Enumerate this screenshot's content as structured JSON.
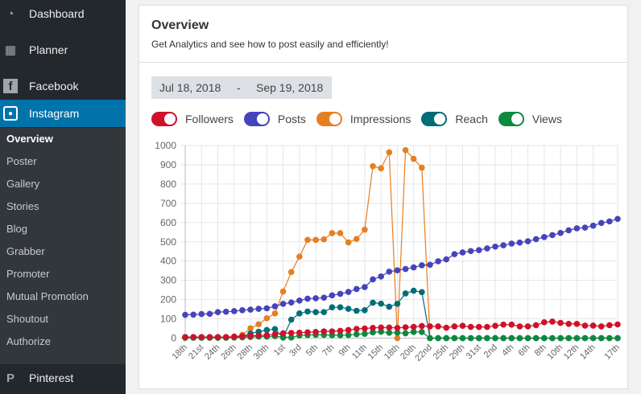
{
  "sidebar": {
    "items": [
      {
        "label": "Dashboard",
        "icon": "dashboard-icon"
      },
      {
        "label": "Planner",
        "icon": "calendar-icon"
      },
      {
        "label": "Facebook",
        "icon": "facebook-icon"
      },
      {
        "label": "Instagram",
        "icon": "instagram-icon"
      },
      {
        "label": "Pinterest",
        "icon": "pinterest-icon"
      }
    ],
    "submenu": [
      "Overview",
      "Poster",
      "Gallery",
      "Stories",
      "Blog",
      "Grabber",
      "Promoter",
      "Mutual Promotion",
      "Shoutout",
      "Authorize"
    ],
    "active_item": "Instagram",
    "active_sub": "Overview",
    "colors": {
      "bg": "#23282d",
      "active": "#0073aa"
    }
  },
  "card": {
    "title": "Overview",
    "subtitle": "Get Analytics and see how to post easily and efficiently!",
    "date_from": "Jul 18, 2018",
    "date_sep": "-",
    "date_to": "Sep 19, 2018"
  },
  "legend": [
    {
      "label": "Followers",
      "color": "#d0102a",
      "on": true
    },
    {
      "label": "Posts",
      "color": "#4444bb",
      "on": true
    },
    {
      "label": "Impressions",
      "color": "#e67e22",
      "on": true
    },
    {
      "label": "Reach",
      "color": "#006d77",
      "on": true
    },
    {
      "label": "Views",
      "color": "#0b8a3f",
      "on": true
    }
  ],
  "chart_data": {
    "type": "line",
    "ylim": [
      0,
      1000
    ],
    "yticks": [
      0,
      100,
      200,
      300,
      400,
      500,
      600,
      700,
      800,
      900,
      1000
    ],
    "x_tick_labels": [
      "18th",
      "21st",
      "24th",
      "26th",
      "28th",
      "30th",
      "1st",
      "3rd",
      "5th",
      "7th",
      "9th",
      "11th",
      "15th",
      "18th",
      "20th",
      "22nd",
      "25th",
      "29th",
      "31st",
      "2nd",
      "4th",
      "6th",
      "8th",
      "10th",
      "12th",
      "14th",
      "17th"
    ],
    "grid": true,
    "series": [
      {
        "name": "Impressions",
        "color": "#e67e22",
        "values": [
          5,
          5,
          5,
          5,
          5,
          5,
          5,
          17,
          51,
          72,
          103,
          128,
          242,
          343,
          423,
          510,
          510,
          513,
          545,
          545,
          497,
          515,
          563,
          893,
          882,
          965,
          0,
          976,
          931,
          885,
          0,
          0,
          0,
          0,
          0,
          0,
          0,
          0,
          0,
          0,
          0,
          0,
          0,
          0,
          0,
          0,
          0,
          0,
          0,
          0,
          0,
          0,
          0,
          0
        ]
      },
      {
        "name": "Reach",
        "color": "#006d77",
        "values": [
          5,
          5,
          5,
          5,
          5,
          5,
          5,
          8,
          24,
          33,
          42,
          47,
          3,
          96,
          128,
          138,
          135,
          135,
          160,
          160,
          152,
          142,
          145,
          184,
          179,
          163,
          178,
          232,
          246,
          239,
          0,
          0,
          0,
          0,
          0,
          0,
          0,
          0,
          0,
          0,
          0,
          0,
          0,
          0,
          0,
          0,
          0,
          0,
          0,
          0,
          0,
          0,
          0,
          0
        ]
      },
      {
        "name": "Views",
        "color": "#0b8a3f",
        "values": [
          2,
          2,
          2,
          2,
          2,
          2,
          3,
          4,
          6,
          8,
          8,
          10,
          6,
          3,
          14,
          16,
          17,
          17,
          15,
          15,
          16,
          20,
          22,
          30,
          33,
          28,
          28,
          25,
          32,
          32,
          0,
          0,
          0,
          0,
          0,
          0,
          0,
          0,
          0,
          0,
          0,
          0,
          0,
          0,
          0,
          0,
          0,
          0,
          0,
          0,
          0,
          0,
          0,
          0
        ]
      },
      {
        "name": "Posts",
        "color": "#4444bb",
        "values": [
          121,
          122,
          125,
          126,
          135,
          137,
          140,
          145,
          148,
          152,
          155,
          165,
          178,
          185,
          195,
          205,
          207,
          210,
          222,
          230,
          240,
          255,
          265,
          305,
          320,
          345,
          352,
          359,
          367,
          378,
          381,
          399,
          409,
          436,
          445,
          452,
          457,
          466,
          475,
          482,
          491,
          496,
          503,
          514,
          525,
          535,
          546,
          560,
          570,
          574,
          584,
          598,
          606,
          619
        ]
      },
      {
        "name": "Followers",
        "color": "#d0102a",
        "values": [
          5,
          5,
          5,
          5,
          5,
          5,
          8,
          10,
          12,
          14,
          15,
          20,
          25,
          27,
          28,
          30,
          32,
          35,
          35,
          38,
          42,
          48,
          50,
          53,
          55,
          55,
          53,
          56,
          58,
          63,
          61,
          61,
          54,
          61,
          64,
          58,
          58,
          58,
          64,
          70,
          70,
          61,
          61,
          67,
          82,
          86,
          79,
          74,
          74,
          65,
          65,
          61,
          67,
          71
        ]
      }
    ]
  }
}
